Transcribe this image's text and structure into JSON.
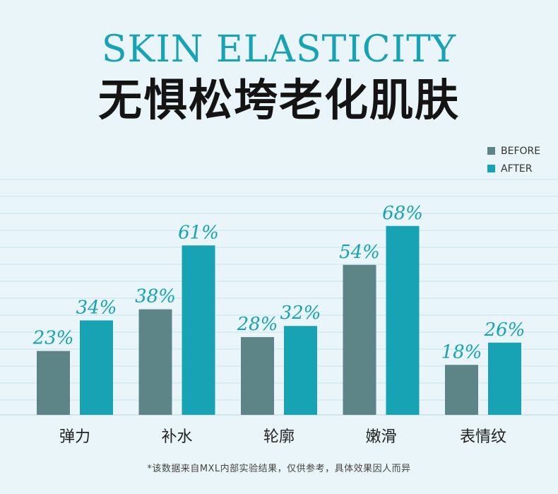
{
  "header": {
    "title_en": "SKIN ELASTICITY",
    "title_cn": "无惧松垮老化肌肤"
  },
  "colors": {
    "background": "#e9f5f8",
    "before": "#5d8588",
    "after": "#17a3b4",
    "title_accent": "#17a3b4",
    "grid": "#c9e2e8"
  },
  "chart_data": {
    "type": "bar",
    "categories": [
      "弹力",
      "补水",
      "轮廓",
      "嫩滑",
      "表情纹"
    ],
    "series": [
      {
        "name": "BEFORE",
        "values": [
          23,
          38,
          28,
          54,
          18
        ],
        "labels": [
          "23%",
          "38%",
          "28%",
          "54%",
          "18%"
        ]
      },
      {
        "name": "AFTER",
        "values": [
          34,
          61,
          32,
          68,
          26
        ],
        "labels": [
          "34%",
          "61%",
          "32%",
          "68%",
          "26%"
        ]
      }
    ],
    "ylim": [
      0,
      80
    ],
    "grid": true,
    "legend": "top-right",
    "xlabel": "",
    "ylabel": "",
    "title": ""
  },
  "footnote": "*该数据来自MXL内部实验结果，仅供参考，具体效果因人而异"
}
